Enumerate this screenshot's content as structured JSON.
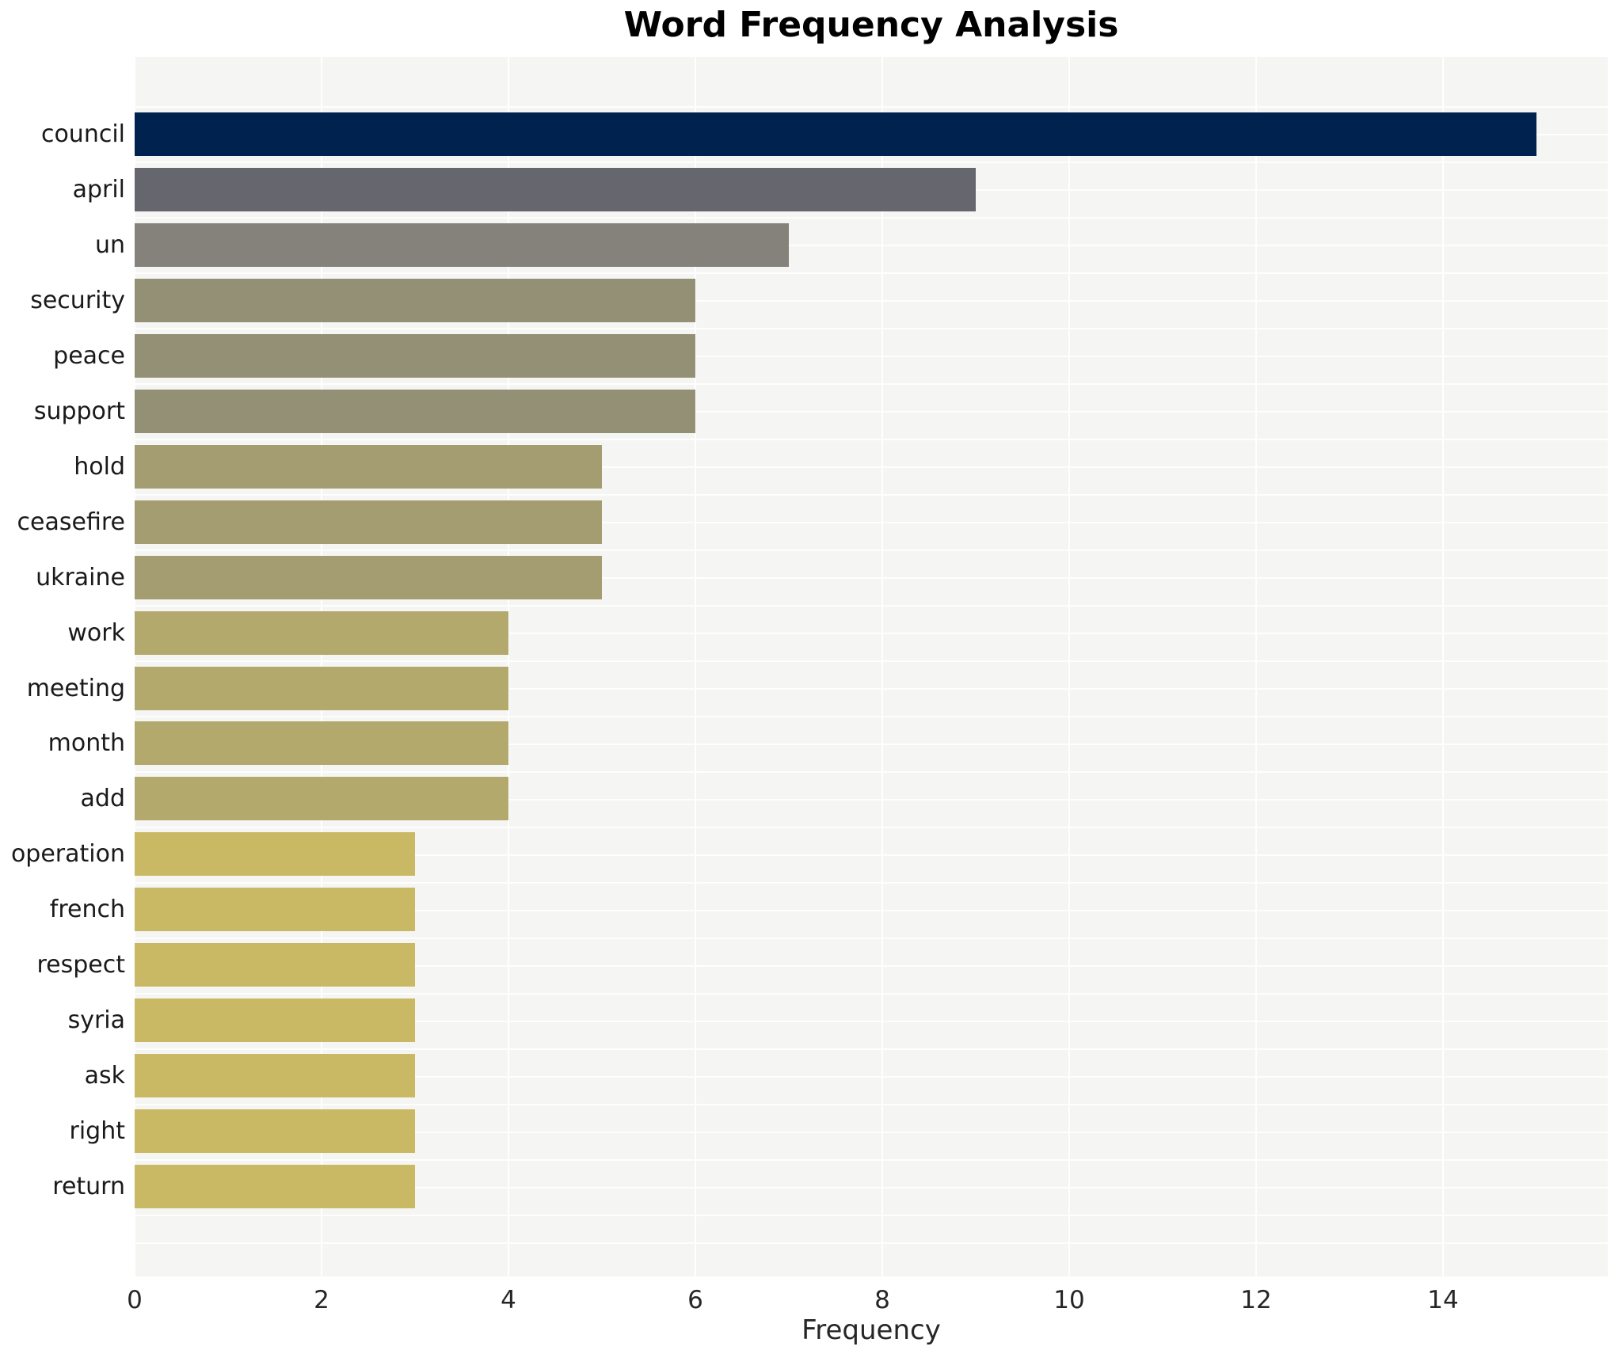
{
  "title": "Word Frequency Analysis",
  "xlabel": "Frequency",
  "colors": {
    "plot_background": "#f5f5f3",
    "gridline": "#ffffff",
    "title_text": "#000000",
    "tick_text": "#262626",
    "label_text": "#1a1a1a"
  },
  "chart_data": {
    "type": "bar",
    "orientation": "horizontal",
    "title": "Word Frequency Analysis",
    "xlabel": "Frequency",
    "ylabel": "",
    "grid": "on",
    "legend": "none",
    "xlim": [
      0,
      15.75
    ],
    "x_ticks": [
      0,
      2,
      4,
      6,
      8,
      10,
      12,
      14
    ],
    "categories": [
      "council",
      "april",
      "un",
      "security",
      "peace",
      "support",
      "hold",
      "ceasefire",
      "ukraine",
      "work",
      "meeting",
      "month",
      "add",
      "operation",
      "french",
      "respect",
      "syria",
      "ask",
      "right",
      "return"
    ],
    "values": [
      15,
      9,
      7,
      6,
      6,
      6,
      5,
      5,
      5,
      4,
      4,
      4,
      4,
      3,
      3,
      3,
      3,
      3,
      3,
      3
    ],
    "bar_colors": [
      "#00224e",
      "#65666e",
      "#85827b",
      "#949076",
      "#949076",
      "#949076",
      "#a49d72",
      "#a49d72",
      "#a49d72",
      "#b3a96d",
      "#b3a96d",
      "#b3a96d",
      "#b3a96d",
      "#c9b965",
      "#c9b965",
      "#c9b965",
      "#c9b965",
      "#c9b965",
      "#c9b965",
      "#c9b965"
    ],
    "colormap_note": "cividis, darkest = highest frequency"
  }
}
